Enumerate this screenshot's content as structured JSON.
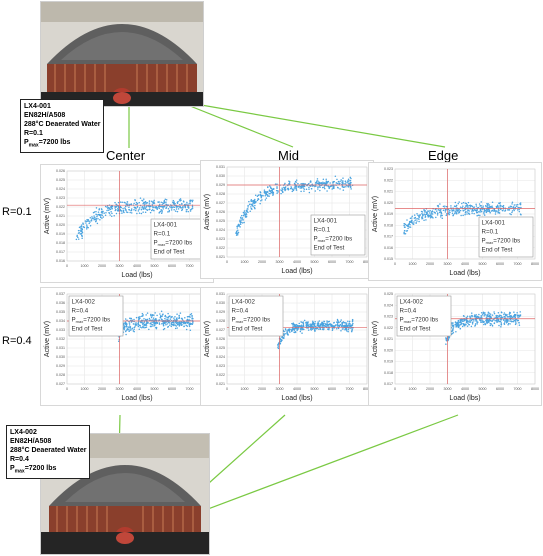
{
  "top_specimen": {
    "lines": [
      "LX4-001",
      "EN82H/A508",
      "288°C Deaerated Water",
      "R=0.1"
    ],
    "pmax_prefix": "P",
    "pmax_sub": "max",
    "pmax_value": "=7200 lbs"
  },
  "bottom_specimen": {
    "lines": [
      "LX4-002",
      "EN82H/A508",
      "288°C Deaerated Water",
      "R=0.4"
    ],
    "pmax_prefix": "P",
    "pmax_sub": "max",
    "pmax_value": "=7200 lbs"
  },
  "columns": [
    "Center",
    "Mid",
    "Edge"
  ],
  "rows": [
    "R=0.1",
    "R=0.4"
  ],
  "colors": {
    "points": "#4aa3df",
    "crosshair": "#e06666",
    "link": "#7ac943",
    "grid": "#e6e6e6"
  },
  "chart_data": [
    {
      "type": "scatter",
      "name": "Center R=0.1",
      "xlabel": "Load (lbs)",
      "ylabel": "Active (mV)",
      "xlim": [
        0,
        8000
      ],
      "xticks": [
        0,
        1000,
        2000,
        3000,
        4000,
        5000,
        6000,
        7000,
        8000
      ],
      "ylim": [
        0.016,
        0.026
      ],
      "yticks": [
        "0.026",
        "0.025",
        "0.024",
        "0.023",
        "0.022",
        "0.021",
        "0.020",
        "0.019",
        "0.018",
        "0.017",
        "0.016"
      ],
      "vline": 3000,
      "hline": 0.0222,
      "curve": {
        "low": 0.0185,
        "plateau": 0.0222,
        "k": 1100,
        "x_start": 500,
        "x_end": 7200,
        "noise": 0.0006
      },
      "legend": [
        "LX4-001",
        "R=0.1",
        "P",
        "max",
        "=7200 lbs",
        "End of Test"
      ],
      "legend_pos": "bottom-right"
    },
    {
      "type": "scatter",
      "name": "Mid R=0.1",
      "xlabel": "Load (lbs)",
      "ylabel": "Active (mV)",
      "xlim": [
        0,
        8000
      ],
      "xticks": [
        0,
        1000,
        2000,
        3000,
        4000,
        5000,
        6000,
        7000,
        8000
      ],
      "ylim": [
        0.021,
        0.031
      ],
      "yticks": [
        "0.031",
        "0.030",
        "0.029",
        "0.028",
        "0.027",
        "0.026",
        "0.025",
        "0.024",
        "0.023",
        "0.022",
        "0.021"
      ],
      "vline": 3000,
      "hline": 0.029,
      "curve": {
        "low": 0.0235,
        "plateau": 0.0291,
        "k": 1000,
        "x_start": 500,
        "x_end": 7200,
        "noise": 0.0005
      },
      "legend": [
        "LX4-001",
        "R=0.1",
        "P",
        "max",
        "=7200 lbs",
        "End of Test"
      ],
      "legend_pos": "bottom-right"
    },
    {
      "type": "scatter",
      "name": "Edge R=0.1",
      "xlabel": "Load (lbs)",
      "ylabel": "Active (mV)",
      "xlim": [
        0,
        8000
      ],
      "xticks": [
        0,
        1000,
        2000,
        3000,
        4000,
        5000,
        6000,
        7000,
        8000
      ],
      "ylim": [
        0.015,
        0.023
      ],
      "yticks": [
        "0.023",
        "0.022",
        "0.021",
        "0.020",
        "0.019",
        "0.018",
        "0.017",
        "0.016",
        "0.015"
      ],
      "vline": 3000,
      "hline": 0.0195,
      "curve": {
        "low": 0.0175,
        "plateau": 0.0195,
        "k": 1000,
        "x_start": 500,
        "x_end": 7200,
        "noise": 0.0004
      },
      "legend": [
        "LX4-001",
        "R=0.1",
        "P",
        "max",
        "=7200 lbs",
        "End of Test"
      ],
      "legend_pos": "bottom-right"
    },
    {
      "type": "scatter",
      "name": "Center R=0.4",
      "xlabel": "Load (lbs)",
      "ylabel": "Active (mV)",
      "xlim": [
        0,
        8000
      ],
      "xticks": [
        0,
        1000,
        2000,
        3000,
        4000,
        5000,
        6000,
        7000,
        8000
      ],
      "ylim": [
        0.027,
        0.037
      ],
      "yticks": [
        "0.037",
        "0.036",
        "0.035",
        "0.034",
        "0.033",
        "0.032",
        "0.031",
        "0.030",
        "0.029",
        "0.028",
        "0.027"
      ],
      "vline": 3000,
      "hline": 0.034,
      "curve": {
        "low": 0.0325,
        "plateau": 0.034,
        "k": 500,
        "x_start": 2900,
        "x_end": 7200,
        "noise": 0.0006
      },
      "legend": [
        "LX4-002",
        "R=0.4",
        "P",
        "max",
        "=7200 lbs",
        "End of Test"
      ],
      "legend_pos": "top-left"
    },
    {
      "type": "scatter",
      "name": "Mid R=0.4",
      "xlabel": "Load (lbs)",
      "ylabel": "Active (mV)",
      "xlim": [
        0,
        8000
      ],
      "xticks": [
        0,
        1000,
        2000,
        3000,
        4000,
        5000,
        6000,
        7000,
        8000
      ],
      "ylim": [
        0.021,
        0.031
      ],
      "yticks": [
        "0.031",
        "0.030",
        "0.029",
        "0.028",
        "0.027",
        "0.026",
        "0.025",
        "0.024",
        "0.023",
        "0.022",
        "0.021"
      ],
      "vline": 3000,
      "hline": 0.0273,
      "curve": {
        "low": 0.0252,
        "plateau": 0.0275,
        "k": 450,
        "x_start": 2900,
        "x_end": 7200,
        "noise": 0.0004
      },
      "legend": [
        "LX4-002",
        "R=0.4",
        "P",
        "max",
        "=7200 lbs",
        "End of Test"
      ],
      "legend_pos": "top-left"
    },
    {
      "type": "scatter",
      "name": "Edge R=0.4",
      "xlabel": "Load (lbs)",
      "ylabel": "Active (mV)",
      "xlim": [
        0,
        8000
      ],
      "xticks": [
        0,
        1000,
        2000,
        3000,
        4000,
        5000,
        6000,
        7000,
        8000
      ],
      "ylim": [
        0.017,
        0.025
      ],
      "yticks": [
        "0.025",
        "0.024",
        "0.023",
        "0.022",
        "0.021",
        "0.020",
        "0.019",
        "0.018",
        "0.017"
      ],
      "vline": 3000,
      "hline": 0.0228,
      "curve": {
        "low": 0.0208,
        "plateau": 0.0228,
        "k": 450,
        "x_start": 2900,
        "x_end": 7200,
        "noise": 0.0004
      },
      "legend": [
        "LX4-002",
        "R=0.4",
        "P",
        "max",
        "=7200 lbs",
        "End of Test"
      ],
      "legend_pos": "top-left"
    }
  ]
}
